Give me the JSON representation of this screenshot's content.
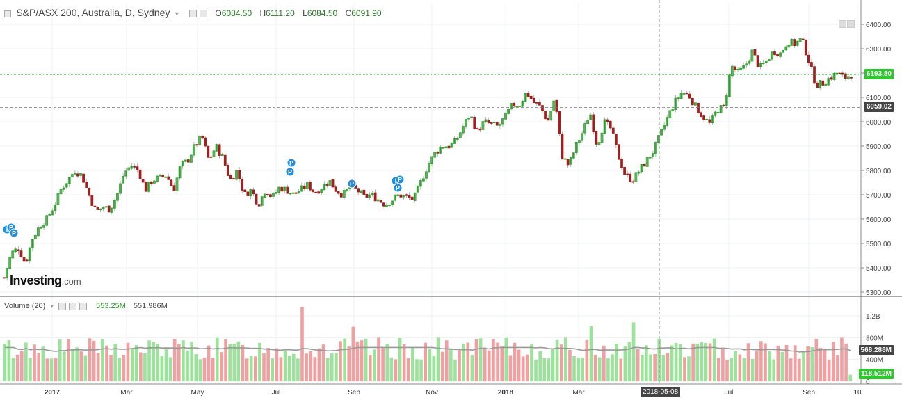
{
  "header": {
    "title": "S&P/ASX 200, Australia, D, Sydney",
    "open_label": "O",
    "open": "6084.50",
    "high_label": "H",
    "high": "6111.20",
    "low_label": "L",
    "low": "6084.50",
    "close_label": "C",
    "close": "6091.90"
  },
  "volume_legend": {
    "title": "Volume (20)",
    "value1": "553.25M",
    "value2": "551.986M"
  },
  "price_tags": {
    "current": "6193.80",
    "crosshair": "6059.02",
    "volume_ma": "568.288M",
    "volume_current": "118.512M"
  },
  "crosshair_date": "2018-05-08",
  "watermark": {
    "brand": "Investing",
    "suffix": ".com"
  },
  "colors": {
    "up": "#2e9e2e",
    "down": "#a02020",
    "up_vol": "#9be39b",
    "down_vol": "#f0a0a0",
    "current_line": "#33cc33",
    "ma": "#999999",
    "tag_green": "#2ec82e"
  },
  "chart_data": [
    {
      "type": "candlestick",
      "title": "S&P/ASX 200, Australia, D, Sydney",
      "x_ticks": [
        "2017",
        "Mar",
        "May",
        "Jul",
        "Sep",
        "Nov",
        "2018",
        "Mar",
        "Jul",
        "Sep",
        "10"
      ],
      "y_ticks": [
        5300,
        5400,
        5500,
        5600,
        5700,
        5800,
        5900,
        6000,
        6100,
        6200,
        6300,
        6400
      ],
      "ylim": [
        5260,
        6460
      ],
      "y_tick_labels": [
        "5300.00",
        "5400.00",
        "5500.00",
        "5600.00",
        "5700.00",
        "5800.00",
        "5900.00",
        "6000.00",
        "6100.00",
        "6200.00",
        "6300.00",
        "6400.00"
      ],
      "grid": true,
      "close_path": [
        [
          0,
          5360
        ],
        [
          1,
          5460
        ],
        [
          2,
          5480
        ],
        [
          3,
          5420
        ],
        [
          4,
          5520
        ],
        [
          5,
          5570
        ],
        [
          6,
          5600
        ],
        [
          7,
          5650
        ],
        [
          8,
          5720
        ],
        [
          9,
          5760
        ],
        [
          10,
          5800
        ],
        [
          11,
          5780
        ],
        [
          12,
          5700
        ],
        [
          13,
          5630
        ],
        [
          14,
          5650
        ],
        [
          15,
          5640
        ],
        [
          16,
          5700
        ],
        [
          17,
          5790
        ],
        [
          18,
          5820
        ],
        [
          19,
          5800
        ],
        [
          20,
          5720
        ],
        [
          21,
          5760
        ],
        [
          22,
          5770
        ],
        [
          23,
          5780
        ],
        [
          24,
          5720
        ],
        [
          25,
          5820
        ],
        [
          26,
          5840
        ],
        [
          27,
          5900
        ],
        [
          28,
          5940
        ],
        [
          29,
          5840
        ],
        [
          30,
          5900
        ],
        [
          31,
          5850
        ],
        [
          32,
          5760
        ],
        [
          33,
          5800
        ],
        [
          34,
          5700
        ],
        [
          35,
          5720
        ],
        [
          36,
          5660
        ],
        [
          37,
          5720
        ],
        [
          38,
          5690
        ],
        [
          39,
          5730
        ],
        [
          40,
          5720
        ],
        [
          41,
          5700
        ],
        [
          42,
          5720
        ],
        [
          43,
          5740
        ],
        [
          44,
          5710
        ],
        [
          45,
          5730
        ],
        [
          46,
          5760
        ],
        [
          47,
          5720
        ],
        [
          48,
          5700
        ],
        [
          49,
          5730
        ],
        [
          50,
          5720
        ],
        [
          51,
          5690
        ],
        [
          52,
          5700
        ],
        [
          53,
          5680
        ],
        [
          54,
          5660
        ],
        [
          55,
          5680
        ],
        [
          56,
          5700
        ],
        [
          57,
          5690
        ],
        [
          58,
          5680
        ],
        [
          59,
          5750
        ],
        [
          60,
          5820
        ],
        [
          61,
          5870
        ],
        [
          62,
          5900
        ],
        [
          63,
          5900
        ],
        [
          64,
          5920
        ],
        [
          65,
          5980
        ],
        [
          66,
          6030
        ],
        [
          67,
          5960
        ],
        [
          68,
          6000
        ],
        [
          69,
          5990
        ],
        [
          70,
          5980
        ],
        [
          71,
          6020
        ],
        [
          72,
          6070
        ],
        [
          73,
          6070
        ],
        [
          74,
          6120
        ],
        [
          75,
          6080
        ],
        [
          76,
          6060
        ],
        [
          77,
          6000
        ],
        [
          78,
          6100
        ],
        [
          79,
          5860
        ],
        [
          80,
          5820
        ],
        [
          81,
          5900
        ],
        [
          82,
          5960
        ],
        [
          83,
          6040
        ],
        [
          84,
          5900
        ],
        [
          85,
          6000
        ],
        [
          86,
          5970
        ],
        [
          87,
          5860
        ],
        [
          88,
          5780
        ],
        [
          89,
          5760
        ],
        [
          90,
          5800
        ],
        [
          91,
          5840
        ],
        [
          92,
          5880
        ],
        [
          93,
          5950
        ],
        [
          94,
          6020
        ],
        [
          95,
          6080
        ],
        [
          96,
          6120
        ],
        [
          97,
          6110
        ],
        [
          98,
          6060
        ],
        [
          99,
          6020
        ],
        [
          100,
          5990
        ],
        [
          101,
          6050
        ],
        [
          102,
          6060
        ],
        [
          103,
          6230
        ],
        [
          104,
          6200
        ],
        [
          105,
          6230
        ],
        [
          106,
          6290
        ],
        [
          107,
          6220
        ],
        [
          108,
          6250
        ],
        [
          109,
          6290
        ],
        [
          110,
          6280
        ],
        [
          111,
          6330
        ],
        [
          112,
          6320
        ],
        [
          113,
          6340
        ],
        [
          114,
          6250
        ],
        [
          115,
          6150
        ],
        [
          116,
          6160
        ],
        [
          117,
          6180
        ],
        [
          118,
          6200
        ],
        [
          119,
          6180
        ],
        [
          120,
          6193.8
        ]
      ]
    },
    {
      "type": "bar",
      "title": "Volume (20)",
      "y_ticks": [
        "0",
        "400M",
        "800M",
        "1.2B"
      ],
      "ylim_millions": [
        0,
        1300
      ],
      "spikes_millions": [
        [
          8,
          1080
        ],
        [
          45,
          1360
        ],
        [
          53,
          1000
        ],
        [
          90,
          1010
        ],
        [
          96,
          1080
        ],
        [
          118,
          1020
        ],
        [
          130,
          1040
        ]
      ],
      "moving_average_millions": 552
    }
  ]
}
